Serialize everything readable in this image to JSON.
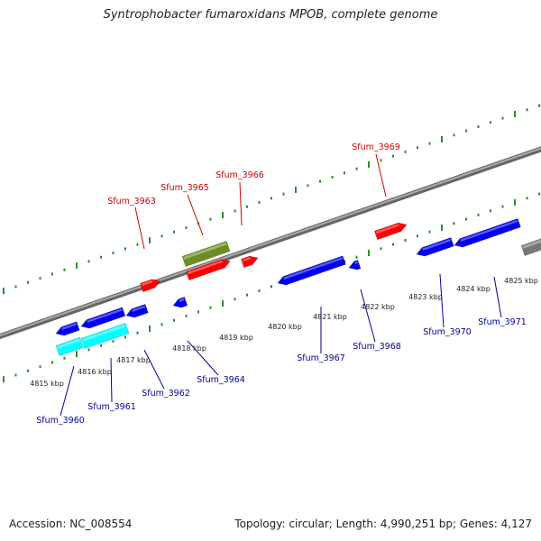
{
  "title": "Syntrophobacter fumaroxidans MPOB, complete genome",
  "footer": {
    "accession": "Accession: NC_008554",
    "summary": "Topology: circular; Length: 4,990,251 bp; Genes: 4,127"
  },
  "colors": {
    "backbone": "#8c8c8c",
    "tick": "#2e8b2e",
    "forward_gene": "#ff0000",
    "forward_label": "#cc0000",
    "reverse_gene": "#0000ee",
    "reverse_label": "#000099",
    "rna_forward": "#6b8e23",
    "rna_reverse": "#00ffff",
    "other": "#777777"
  },
  "kbp_labels": [
    "4815 kbp",
    "4816 kbp",
    "4817 kbp",
    "4818 kbp",
    "4819 kbp",
    "4820 kbp",
    "4821 kbp",
    "4822 kbp",
    "4823 kbp",
    "4824 kbp",
    "4825 kbp"
  ],
  "forward_gene_labels": [
    "Sfum_3963",
    "Sfum_3965",
    "Sfum_3966",
    "Sfum_3969"
  ],
  "reverse_gene_labels": [
    "Sfum_3960",
    "Sfum_3961",
    "Sfum_3962",
    "Sfum_3964",
    "Sfum_3967",
    "Sfum_3968",
    "Sfum_3970",
    "Sfum_3971"
  ]
}
